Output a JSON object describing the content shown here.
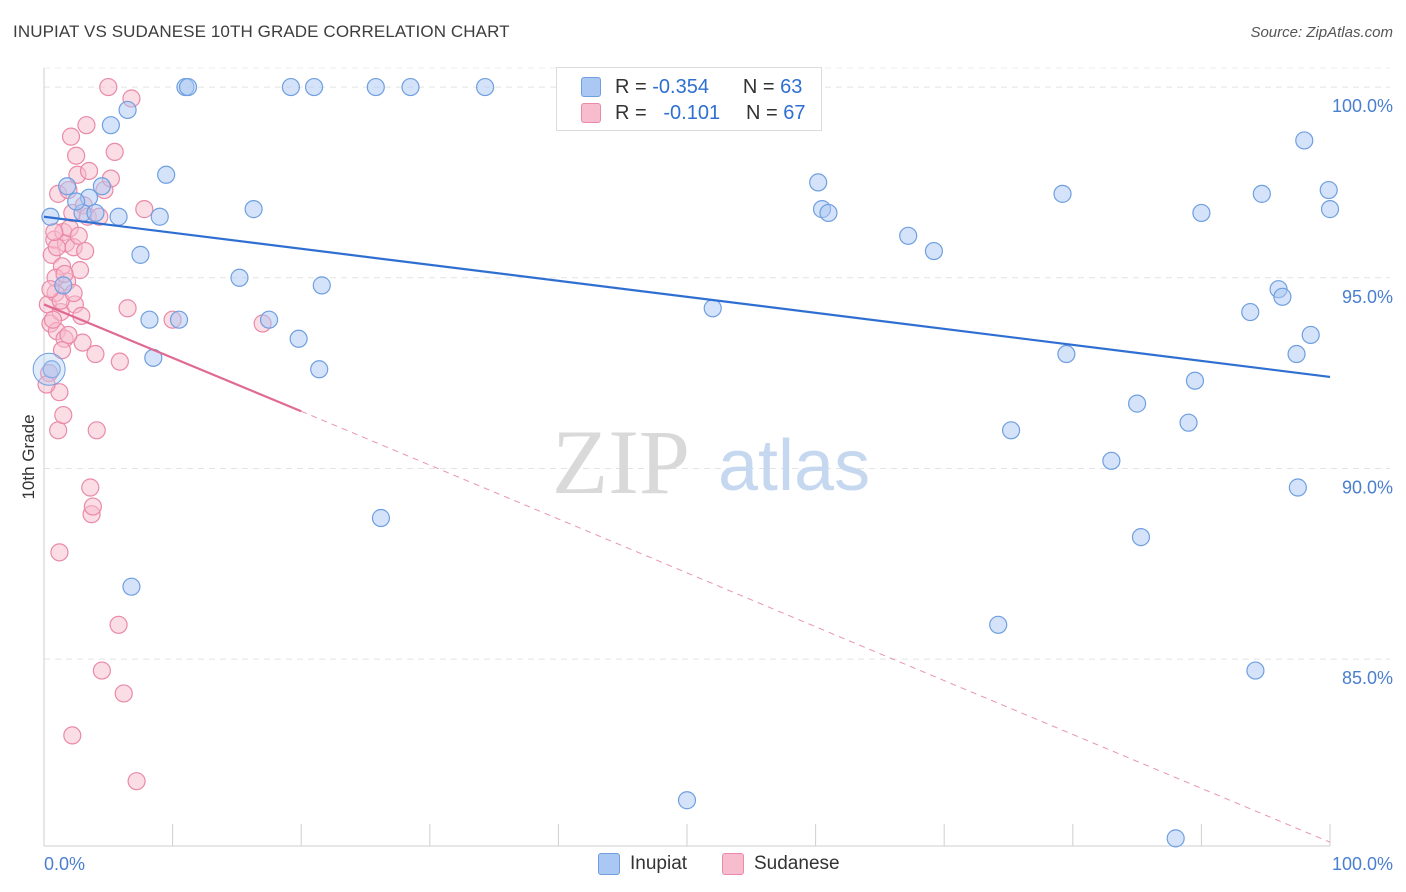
{
  "title": "INUPIAT VS SUDANESE 10TH GRADE CORRELATION CHART",
  "source": "Source: ZipAtlas.com",
  "watermark": {
    "zip": "ZIP",
    "atlas": "atlas"
  },
  "legend": {
    "rows": [
      {
        "r_label": "R =",
        "r_value": "-0.354",
        "n_label": "N =",
        "n_value": "63",
        "color": "#aac8f3",
        "border": "#6f9fe0"
      },
      {
        "r_label": "R =",
        "r_value": "-0.101",
        "n_label": "N =",
        "n_value": "67",
        "color": "#f7bccd",
        "border": "#ea8aa8"
      }
    ]
  },
  "bottom_legend": {
    "series1": "Inupiat",
    "series2": "Sudanese"
  },
  "chart_data": {
    "type": "scatter",
    "title": "INUPIAT VS SUDANESE 10TH GRADE CORRELATION CHART",
    "xlabel": "",
    "ylabel": "10th Grade",
    "xlim": [
      0,
      100
    ],
    "ylim": [
      80.1,
      100.5
    ],
    "x_tick_labels": [
      "0.0%",
      "100.0%"
    ],
    "y_ticks": [
      85,
      90,
      95,
      100
    ],
    "y_tick_labels": [
      "85.0%",
      "90.0%",
      "95.0%",
      "100.0%"
    ],
    "grid": true,
    "colors": {
      "inupiat": "#6f9fe0",
      "inupiat_fill": "#aac8f3",
      "inupiat_line": "#2f6fd1",
      "sudanese": "#ea8aa8",
      "sudanese_fill": "#f7bccd",
      "sudanese_line": "#e06a93"
    },
    "series": [
      {
        "name": "Inupiat",
        "trend": {
          "x": [
            0,
            100
          ],
          "y": [
            96.6,
            92.4
          ]
        },
        "points": [
          [
            0.5,
            96.6
          ],
          [
            1.8,
            97.4
          ],
          [
            3.5,
            97.1
          ],
          [
            4.5,
            97.4
          ],
          [
            5.2,
            99.0
          ],
          [
            6.5,
            99.4
          ],
          [
            7.5,
            95.6
          ],
          [
            8.2,
            93.9
          ],
          [
            8.5,
            92.9
          ],
          [
            9.0,
            96.6
          ],
          [
            9.5,
            97.7
          ],
          [
            10.5,
            93.9
          ],
          [
            11.0,
            100.0
          ],
          [
            11.2,
            100.0
          ],
          [
            15.2,
            95.0
          ],
          [
            16.3,
            96.8
          ],
          [
            19.2,
            100.0
          ],
          [
            19.8,
            93.4
          ],
          [
            21.0,
            100.0
          ],
          [
            21.4,
            92.6
          ],
          [
            21.6,
            94.8
          ],
          [
            25.8,
            100.0
          ],
          [
            26.2,
            88.7
          ],
          [
            28.5,
            100.0
          ],
          [
            34.3,
            100.0
          ],
          [
            47.2,
            100.0
          ],
          [
            50.0,
            81.3
          ],
          [
            52.0,
            94.2
          ],
          [
            60.2,
            97.5
          ],
          [
            60.5,
            96.8
          ],
          [
            61.0,
            96.7
          ],
          [
            67.2,
            96.1
          ],
          [
            69.2,
            95.7
          ],
          [
            74.2,
            85.9
          ],
          [
            75.2,
            91.0
          ],
          [
            79.2,
            97.2
          ],
          [
            79.5,
            93.0
          ],
          [
            83.0,
            90.2
          ],
          [
            85.0,
            91.7
          ],
          [
            85.3,
            88.2
          ],
          [
            88.0,
            80.3
          ],
          [
            89.0,
            91.2
          ],
          [
            89.5,
            92.3
          ],
          [
            90.0,
            96.7
          ],
          [
            93.8,
            94.1
          ],
          [
            94.2,
            84.7
          ],
          [
            94.7,
            97.2
          ],
          [
            96.0,
            94.7
          ],
          [
            96.3,
            94.5
          ],
          [
            97.4,
            93.0
          ],
          [
            97.5,
            89.5
          ],
          [
            98.0,
            98.6
          ],
          [
            98.5,
            93.5
          ],
          [
            99.9,
            97.3
          ],
          [
            100.0,
            96.8
          ],
          [
            3.0,
            96.7
          ],
          [
            6.8,
            86.9
          ],
          [
            4.0,
            96.7
          ],
          [
            2.5,
            97.0
          ],
          [
            5.8,
            96.6
          ],
          [
            1.5,
            94.8
          ],
          [
            0.6,
            92.6
          ],
          [
            17.5,
            93.9
          ]
        ]
      },
      {
        "name": "Sudanese",
        "trend": {
          "x": [
            0,
            20
          ],
          "y": [
            94.3,
            91.5
          ]
        },
        "trend_ext": {
          "x": [
            20,
            100
          ],
          "y": [
            91.5,
            80.2
          ]
        },
        "points": [
          [
            0.3,
            94.3
          ],
          [
            0.5,
            93.8
          ],
          [
            0.6,
            95.6
          ],
          [
            0.8,
            96.0
          ],
          [
            0.9,
            94.6
          ],
          [
            1.0,
            93.6
          ],
          [
            1.1,
            97.2
          ],
          [
            1.2,
            92.0
          ],
          [
            1.3,
            94.1
          ],
          [
            1.4,
            95.3
          ],
          [
            1.5,
            96.2
          ],
          [
            1.6,
            93.4
          ],
          [
            1.7,
            95.9
          ],
          [
            1.8,
            94.9
          ],
          [
            1.9,
            97.3
          ],
          [
            2.0,
            96.3
          ],
          [
            2.1,
            98.7
          ],
          [
            2.2,
            96.7
          ],
          [
            2.3,
            95.8
          ],
          [
            2.4,
            94.3
          ],
          [
            2.5,
            98.2
          ],
          [
            2.6,
            97.7
          ],
          [
            2.7,
            96.1
          ],
          [
            2.8,
            95.2
          ],
          [
            2.9,
            94.0
          ],
          [
            3.0,
            93.3
          ],
          [
            3.1,
            96.9
          ],
          [
            3.2,
            95.7
          ],
          [
            3.3,
            99.0
          ],
          [
            3.4,
            96.6
          ],
          [
            3.5,
            97.8
          ],
          [
            3.6,
            89.5
          ],
          [
            3.7,
            88.8
          ],
          [
            3.8,
            89.0
          ],
          [
            4.0,
            93.0
          ],
          [
            4.1,
            91.0
          ],
          [
            4.3,
            96.6
          ],
          [
            4.5,
            84.7
          ],
          [
            4.7,
            97.3
          ],
          [
            5.0,
            100.0
          ],
          [
            5.2,
            97.6
          ],
          [
            5.5,
            98.3
          ],
          [
            5.8,
            85.9
          ],
          [
            5.9,
            92.8
          ],
          [
            6.2,
            84.1
          ],
          [
            6.5,
            94.2
          ],
          [
            6.8,
            99.7
          ],
          [
            7.2,
            81.8
          ],
          [
            7.8,
            96.8
          ],
          [
            10.0,
            93.9
          ],
          [
            17.0,
            93.8
          ],
          [
            1.1,
            91.0
          ],
          [
            1.2,
            87.8
          ],
          [
            1.5,
            91.4
          ],
          [
            2.2,
            83.0
          ],
          [
            0.4,
            92.5
          ],
          [
            0.7,
            93.9
          ],
          [
            0.9,
            95.0
          ],
          [
            1.3,
            94.4
          ],
          [
            1.6,
            95.1
          ],
          [
            1.9,
            93.5
          ],
          [
            2.3,
            94.6
          ],
          [
            0.2,
            92.2
          ],
          [
            0.5,
            94.7
          ],
          [
            1.0,
            95.8
          ],
          [
            1.4,
            93.1
          ],
          [
            0.8,
            96.2
          ]
        ]
      }
    ]
  }
}
